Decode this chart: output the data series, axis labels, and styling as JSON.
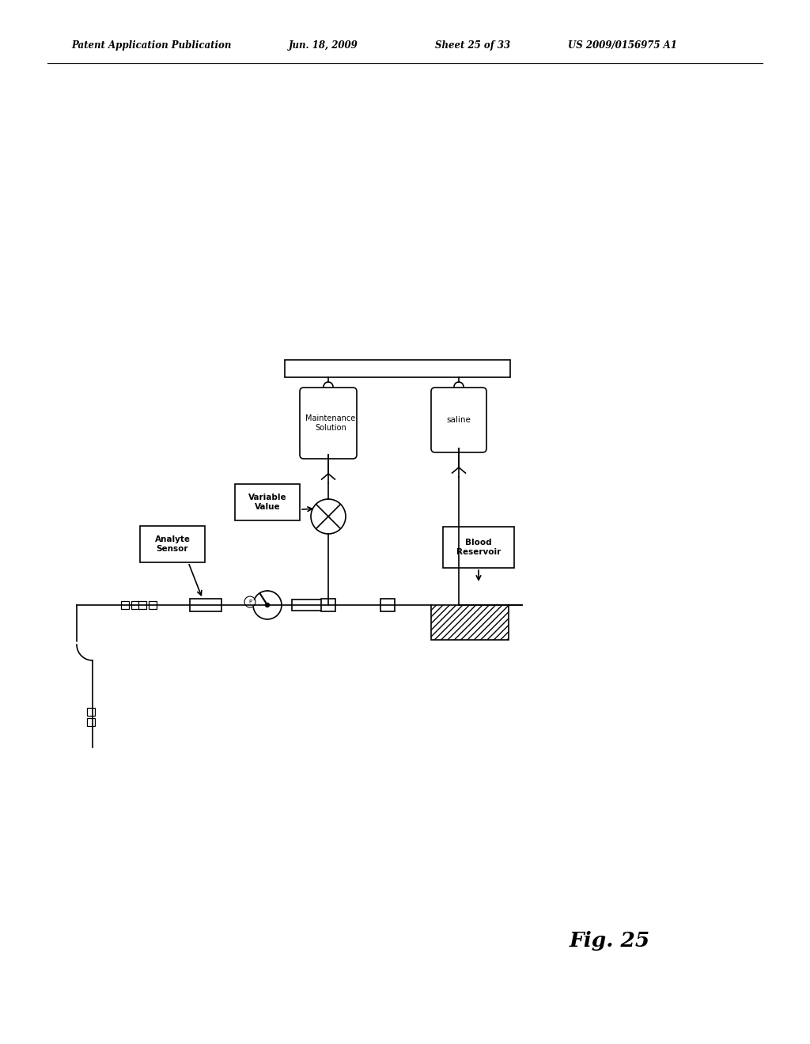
{
  "bg_color": "#ffffff",
  "fig_width": 10.24,
  "fig_height": 13.2,
  "header_text": "Patent Application Publication",
  "header_date": "Jun. 18, 2009",
  "header_sheet": "Sheet 25 of 33",
  "header_patent": "US 2009/0156975 A1",
  "fig_label": "Fig. 25",
  "labels": {
    "maintenance_solution": "Maintenance\nSolution",
    "saline": "saline",
    "variable_value": "Variable\nValue",
    "analyte_sensor": "Analyte\nSensor",
    "blood_reservoir": "Blood\nReservoir"
  }
}
